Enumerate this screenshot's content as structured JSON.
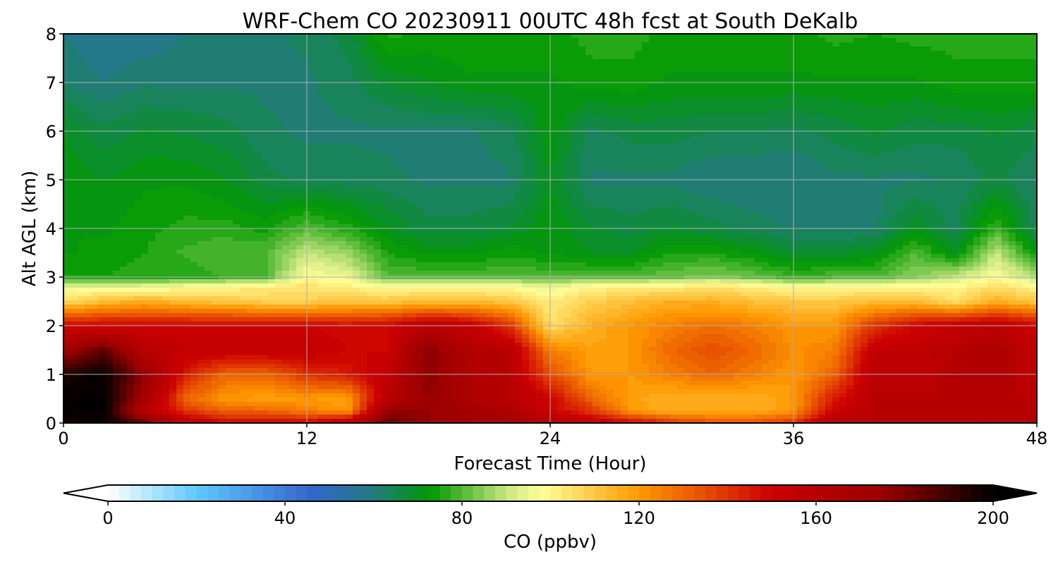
{
  "chart_data": {
    "type": "heatmap",
    "title": "WRF-Chem CO  20230911 00UTC 48h fcst at South DeKalb",
    "xlabel": "Forecast Time (Hour)",
    "ylabel": "Alt AGL (km)",
    "xlim": [
      0,
      48
    ],
    "ylim": [
      0,
      8
    ],
    "xticks": [
      0,
      12,
      24,
      36,
      48
    ],
    "yticks": [
      0,
      1,
      2,
      3,
      4,
      5,
      6,
      7,
      8
    ],
    "grid": true,
    "x": [
      0,
      2,
      4,
      6,
      8,
      10,
      12,
      14,
      16,
      18,
      20,
      22,
      24,
      26,
      28,
      30,
      32,
      34,
      36,
      38,
      40,
      42,
      44,
      46,
      48
    ],
    "y": [
      0,
      0.25,
      0.5,
      1,
      1.5,
      2,
      2.5,
      2.8,
      3,
      3.5,
      4,
      5,
      6,
      7,
      8
    ],
    "z": [
      [
        195,
        200,
        185,
        160,
        150,
        150,
        150,
        160,
        185,
        175,
        170,
        170,
        165,
        155,
        150,
        140,
        135,
        135,
        140,
        165,
        160,
        160,
        160,
        165,
        160
      ],
      [
        200,
        200,
        160,
        140,
        130,
        130,
        125,
        120,
        175,
        175,
        170,
        165,
        150,
        140,
        120,
        115,
        115,
        115,
        120,
        150,
        160,
        160,
        160,
        160,
        160
      ],
      [
        200,
        200,
        170,
        130,
        120,
        118,
        120,
        118,
        160,
        175,
        165,
        160,
        150,
        130,
        118,
        115,
        115,
        115,
        120,
        145,
        160,
        160,
        160,
        160,
        160
      ],
      [
        195,
        200,
        175,
        145,
        130,
        130,
        140,
        145,
        155,
        178,
        165,
        160,
        135,
        120,
        120,
        125,
        130,
        125,
        120,
        130,
        160,
        158,
        162,
        165,
        155
      ],
      [
        170,
        185,
        160,
        155,
        155,
        155,
        155,
        150,
        150,
        178,
        162,
        160,
        125,
        118,
        120,
        130,
        135,
        130,
        122,
        125,
        155,
        155,
        160,
        165,
        155
      ],
      [
        150,
        150,
        150,
        150,
        150,
        150,
        150,
        148,
        150,
        160,
        155,
        140,
        105,
        115,
        120,
        125,
        128,
        125,
        120,
        120,
        140,
        150,
        155,
        158,
        150
      ],
      [
        105,
        112,
        115,
        112,
        110,
        108,
        108,
        110,
        110,
        112,
        112,
        110,
        102,
        108,
        112,
        115,
        115,
        112,
        110,
        110,
        112,
        112,
        105,
        115,
        110
      ],
      [
        95,
        95,
        95,
        98,
        100,
        102,
        104,
        102,
        98,
        100,
        100,
        98,
        95,
        100,
        102,
        102,
        104,
        102,
        98,
        98,
        100,
        100,
        100,
        105,
        100
      ],
      [
        75,
        75,
        76,
        76,
        78,
        80,
        98,
        95,
        80,
        80,
        80,
        80,
        80,
        80,
        80,
        82,
        84,
        82,
        78,
        80,
        80,
        85,
        90,
        98,
        88
      ],
      [
        72,
        74,
        75,
        78,
        80,
        80,
        90,
        86,
        75,
        72,
        72,
        74,
        72,
        70,
        70,
        75,
        75,
        72,
        68,
        68,
        70,
        80,
        70,
        90,
        72
      ],
      [
        72,
        72,
        74,
        76,
        76,
        74,
        80,
        76,
        70,
        66,
        66,
        68,
        72,
        68,
        66,
        68,
        66,
        64,
        62,
        62,
        62,
        70,
        64,
        78,
        64
      ],
      [
        72,
        70,
        72,
        72,
        70,
        66,
        64,
        64,
        63,
        62,
        62,
        62,
        70,
        62,
        62,
        62,
        60,
        60,
        60,
        62,
        62,
        62,
        63,
        66,
        62
      ],
      [
        70,
        66,
        68,
        67,
        66,
        63,
        62,
        62,
        62,
        62,
        62,
        64,
        72,
        64,
        66,
        66,
        65,
        65,
        64,
        66,
        68,
        66,
        66,
        68,
        66
      ],
      [
        62,
        60,
        62,
        62,
        62,
        62,
        62,
        64,
        68,
        70,
        72,
        72,
        72,
        74,
        74,
        72,
        72,
        72,
        72,
        72,
        72,
        72,
        74,
        74,
        74
      ],
      [
        60,
        58,
        58,
        60,
        62,
        62,
        63,
        66,
        76,
        74,
        75,
        74,
        74,
        76,
        76,
        74,
        74,
        74,
        74,
        76,
        75,
        76,
        76,
        76,
        76
      ]
    ],
    "colorbar": {
      "label": "CO  (ppbv)",
      "range": [
        0,
        200
      ],
      "step": 2.5,
      "ticks": [
        0,
        40,
        80,
        120,
        160,
        200
      ],
      "extend": "both",
      "stops": [
        [
          0,
          "#ffffff"
        ],
        [
          20,
          "#5fc8ff"
        ],
        [
          46,
          "#3366cc"
        ],
        [
          60,
          "#237a80"
        ],
        [
          73,
          "#009900"
        ],
        [
          90,
          "#c8e680"
        ],
        [
          98,
          "#ffff99"
        ],
        [
          120,
          "#ff9900"
        ],
        [
          150,
          "#cc0000"
        ],
        [
          175,
          "#990000"
        ],
        [
          200,
          "#000000"
        ]
      ]
    }
  }
}
